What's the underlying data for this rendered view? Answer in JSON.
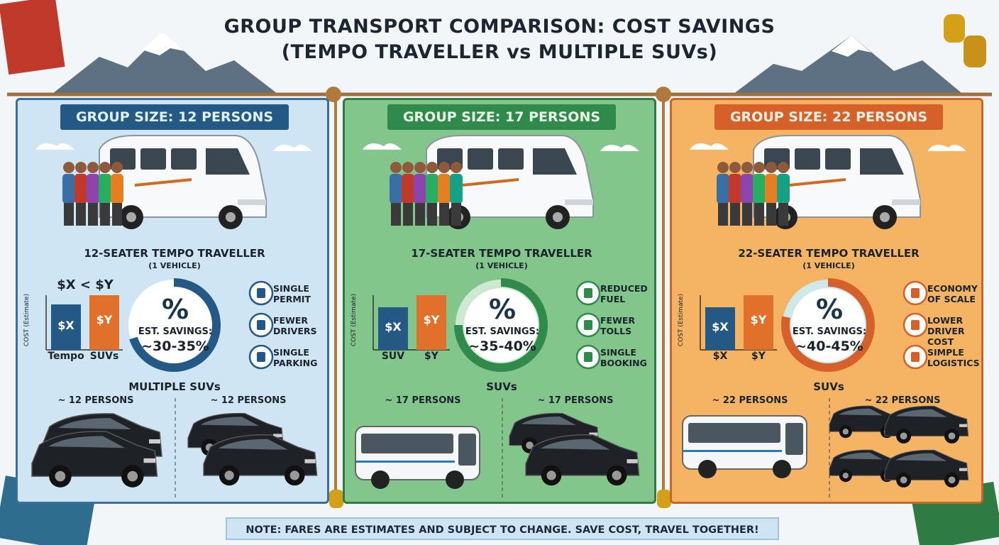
{
  "title": {
    "line1": "GROUP TRANSPORT COMPARISON: COST SAVINGS",
    "line2": "(TEMPO TRAVELLER vs MULTIPLE SUVs)"
  },
  "panels": [
    {
      "header": "GROUP SIZE: 12 PERSONS",
      "vehicle": "12-SEATER TEMPO TRAVELLER",
      "vehicle_count": "(1 VEHICLE)",
      "chart_title": "$X < $Y",
      "axis_label": "COST (Estimate)",
      "bars": [
        {
          "label": "$X",
          "category": "Tempo"
        },
        {
          "label": "$Y",
          "category": "SUVs"
        }
      ],
      "savings": {
        "symbol": "%",
        "label": "EST. SAVINGS:",
        "value": "~30-35%"
      },
      "benefits": [
        "SINGLE PERMIT",
        "FEWER DRIVERS",
        "SINGLE PARKING"
      ],
      "bottom_title": "MULTIPLE SUVs",
      "persons": [
        "~ 12 PERSONS",
        "~ 12 PERSONS"
      ]
    },
    {
      "header": "GROUP SIZE: 17 PERSONS",
      "vehicle": "17-SEATER TEMPO TRAVELLER",
      "vehicle_count": "(1 VEHICLE)",
      "axis_label": "COST (Estimate)",
      "bars": [
        {
          "label": "$X",
          "category": "SUV"
        },
        {
          "label": "$Y",
          "category": "$Y"
        }
      ],
      "savings": {
        "symbol": "%",
        "label": "EST. SAVINGS:",
        "value": "~35-40%"
      },
      "benefits": [
        "REDUCED FUEL",
        "FEWER TOLLS",
        "SINGLE BOOKING"
      ],
      "bottom_title": "SUVs",
      "persons": [
        "~ 17 PERSONS",
        "~ 17 PERSONS"
      ]
    },
    {
      "header": "GROUP SIZE: 22 PERSONS",
      "vehicle": "22-SEATER TEMPO TRAVELLER",
      "vehicle_count": "(1 VEHICLE)",
      "axis_label": "COST (Estimate)",
      "bars": [
        {
          "label": "$X",
          "category": "$X"
        },
        {
          "label": "$Y",
          "category": "$Y"
        }
      ],
      "savings": {
        "symbol": "%",
        "label": "EST. SAVINGS:",
        "value": "~40-45%"
      },
      "benefits": [
        "ECONOMY OF SCALE",
        "LOWER DRIVER COST",
        "SIMPLE LOGISTICS"
      ],
      "bottom_title": "SUVs",
      "persons": [
        "~ 22 PERSONS",
        "~ 22 PERSONS"
      ]
    }
  ],
  "note": "NOTE: FARES ARE ESTIMATES AND SUBJECT TO CHANGE. SAVE COST, TRAVEL TOGETHER!"
}
